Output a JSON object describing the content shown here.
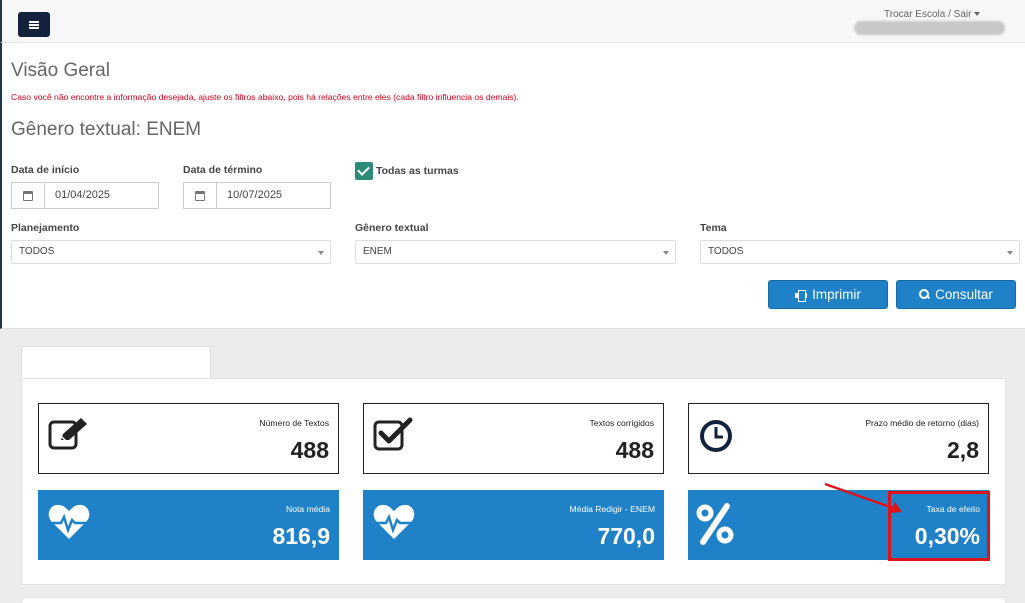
{
  "header": {
    "user_menu_label": "Trocar Escola / Sair"
  },
  "page": {
    "title": "Visão Geral",
    "warning": "Caso você não encontre a informação desejada, ajuste os filtros abaixo, pois há relações entre eles (cada filtro influencia os demais).",
    "subtitle": "Gênero textual: ENEM"
  },
  "filters": {
    "start_date": {
      "label": "Data de início",
      "value": "01/04/2025"
    },
    "end_date": {
      "label": "Data de término",
      "value": "10/07/2025"
    },
    "all_classes": {
      "label": "Todas as turmas",
      "checked": true
    },
    "planning": {
      "label": "Planejamento",
      "value": "TODOS"
    },
    "genre": {
      "label": "Gênero textual",
      "value": "ENEM"
    },
    "theme": {
      "label": "Tema",
      "value": "TODOS"
    }
  },
  "actions": {
    "print_label": "Imprimir",
    "query_label": "Consultar"
  },
  "stats": {
    "num_texts": {
      "label": "Número de Textos",
      "value": "488"
    },
    "corrected": {
      "label": "Textos corrigidos",
      "value": "488"
    },
    "avg_return": {
      "label": "Prazo médio de retorno (dias)",
      "value": "2,8"
    },
    "avg_grade": {
      "label": "Nota média",
      "value": "816,9"
    },
    "avg_redigir": {
      "label": "Média Redigir - ENEM",
      "value": "770,0"
    },
    "effect_rate": {
      "label": "Taxa de efeito",
      "value": "0,30%"
    }
  },
  "colors": {
    "primary": "#1f82c8",
    "navy": "#13213d",
    "check": "#2e8b77",
    "warning": "#d9001b",
    "annotation": "#e0131a"
  }
}
